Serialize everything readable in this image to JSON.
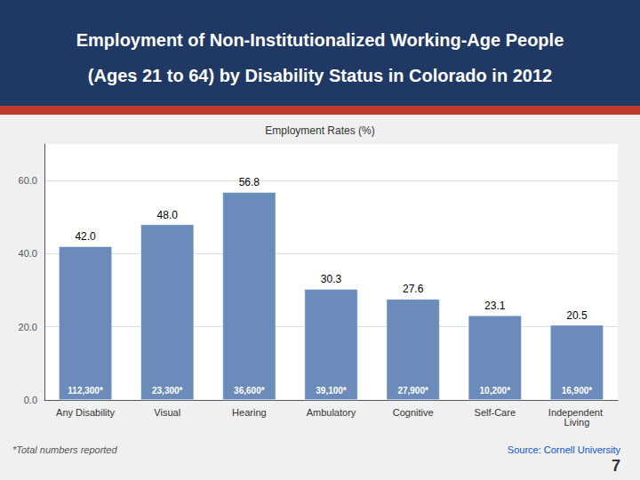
{
  "chart_data": {
    "type": "bar",
    "title": "Employment of Non-Institutionalized Working-Age People",
    "subtitle": "(Ages 21 to 64) by Disability Status in Colorado in 2012",
    "ylabel": "Employment Rates (%)",
    "categories": [
      "Any Disability",
      "Visual",
      "Hearing",
      "Ambulatory",
      "Cognitive",
      "Self-Care",
      "Independent Living"
    ],
    "values": [
      42.0,
      48.0,
      56.8,
      30.3,
      27.6,
      23.1,
      20.5
    ],
    "value_labels": [
      "42.0",
      "48.0",
      "56.8",
      "30.3",
      "27.6",
      "23.1",
      "20.5"
    ],
    "totals": [
      "112,300*",
      "23,300*",
      "36,600*",
      "39,100*",
      "27,900*",
      "10,200*",
      "16,900*"
    ],
    "color": "#6b8cba",
    "ylim": [
      0,
      70
    ],
    "yticks": [
      {
        "value": 0,
        "label": "0.0"
      },
      {
        "value": 20,
        "label": "20.0"
      },
      {
        "value": 40,
        "label": "40.0"
      },
      {
        "value": 60,
        "label": "60.0"
      }
    ],
    "grid": true,
    "data_labels": true,
    "annotations": [
      "*Total numbers reported",
      "Source: Cornell University",
      "7"
    ]
  }
}
